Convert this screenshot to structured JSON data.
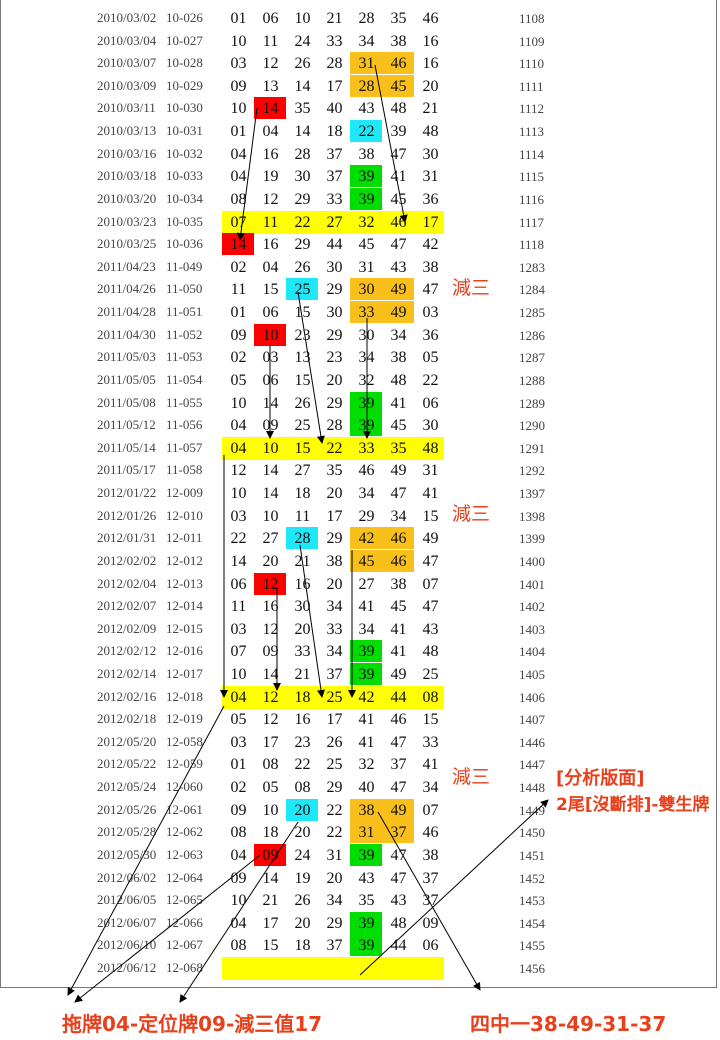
{
  "colors": {
    "yellow": "#ffff00",
    "orange": "#f9c01b",
    "red": "#ff0000",
    "cyan": "#1ee8f8",
    "green": "#00dd00",
    "annotation": "#e8401c"
  },
  "rows": [
    {
      "date": "2010/03/02",
      "issue": "10-026",
      "nums": [
        "01",
        "06",
        "10",
        "21",
        "28",
        "35",
        "46"
      ],
      "idx": "1108",
      "hl": {}
    },
    {
      "date": "2010/03/04",
      "issue": "10-027",
      "nums": [
        "10",
        "11",
        "24",
        "33",
        "34",
        "38",
        "16"
      ],
      "idx": "1109",
      "hl": {}
    },
    {
      "date": "2010/03/07",
      "issue": "10-028",
      "nums": [
        "03",
        "12",
        "26",
        "28",
        "31",
        "46",
        "16"
      ],
      "idx": "1110",
      "hl": {
        "4": "orange",
        "5": "orange"
      }
    },
    {
      "date": "2010/03/09",
      "issue": "10-029",
      "nums": [
        "09",
        "13",
        "14",
        "17",
        "28",
        "45",
        "20"
      ],
      "idx": "1111",
      "hl": {
        "4": "orange",
        "5": "orange"
      }
    },
    {
      "date": "2010/03/11",
      "issue": "10-030",
      "nums": [
        "10",
        "14",
        "35",
        "40",
        "43",
        "48",
        "21"
      ],
      "idx": "1112",
      "hl": {
        "1": "red"
      }
    },
    {
      "date": "2010/03/13",
      "issue": "10-031",
      "nums": [
        "01",
        "04",
        "14",
        "18",
        "22",
        "39",
        "48"
      ],
      "idx": "1113",
      "hl": {
        "4": "cyan"
      }
    },
    {
      "date": "2010/03/16",
      "issue": "10-032",
      "nums": [
        "04",
        "16",
        "28",
        "37",
        "38",
        "47",
        "30"
      ],
      "idx": "1114",
      "hl": {}
    },
    {
      "date": "2010/03/18",
      "issue": "10-033",
      "nums": [
        "04",
        "19",
        "30",
        "37",
        "39",
        "41",
        "31"
      ],
      "idx": "1115",
      "hl": {
        "4": "green"
      }
    },
    {
      "date": "2010/03/20",
      "issue": "10-034",
      "nums": [
        "08",
        "12",
        "29",
        "33",
        "39",
        "45",
        "36"
      ],
      "idx": "1116",
      "hl": {
        "4": "green"
      }
    },
    {
      "date": "2010/03/23",
      "issue": "10-035",
      "nums": [
        "07",
        "11",
        "22",
        "27",
        "32",
        "46",
        "17"
      ],
      "idx": "1117",
      "row_hl": "yellow",
      "hl": {}
    },
    {
      "date": "2010/03/25",
      "issue": "10-036",
      "nums": [
        "14",
        "16",
        "29",
        "44",
        "45",
        "47",
        "42"
      ],
      "idx": "1118",
      "hl": {
        "0": "red"
      }
    },
    {
      "date": "2011/04/23",
      "issue": "11-049",
      "nums": [
        "02",
        "04",
        "26",
        "30",
        "31",
        "43",
        "38"
      ],
      "idx": "1283",
      "hl": {}
    },
    {
      "date": "2011/04/26",
      "issue": "11-050",
      "nums": [
        "11",
        "15",
        "25",
        "29",
        "30",
        "49",
        "47"
      ],
      "idx": "1284",
      "hl": {
        "2": "cyan",
        "4": "orange",
        "5": "orange"
      }
    },
    {
      "date": "2011/04/28",
      "issue": "11-051",
      "nums": [
        "01",
        "06",
        "15",
        "30",
        "33",
        "49",
        "03"
      ],
      "idx": "1285",
      "hl": {
        "4": "orange",
        "5": "orange"
      }
    },
    {
      "date": "2011/04/30",
      "issue": "11-052",
      "nums": [
        "09",
        "10",
        "23",
        "29",
        "30",
        "34",
        "36"
      ],
      "idx": "1286",
      "hl": {
        "1": "red"
      }
    },
    {
      "date": "2011/05/03",
      "issue": "11-053",
      "nums": [
        "02",
        "03",
        "13",
        "23",
        "34",
        "38",
        "05"
      ],
      "idx": "1287",
      "hl": {}
    },
    {
      "date": "2011/05/05",
      "issue": "11-054",
      "nums": [
        "05",
        "06",
        "15",
        "20",
        "32",
        "48",
        "22"
      ],
      "idx": "1288",
      "hl": {}
    },
    {
      "date": "2011/05/08",
      "issue": "11-055",
      "nums": [
        "10",
        "14",
        "26",
        "29",
        "39",
        "41",
        "06"
      ],
      "idx": "1289",
      "hl": {
        "4": "green"
      }
    },
    {
      "date": "2011/05/12",
      "issue": "11-056",
      "nums": [
        "04",
        "09",
        "25",
        "28",
        "39",
        "45",
        "30"
      ],
      "idx": "1290",
      "hl": {
        "4": "green"
      }
    },
    {
      "date": "2011/05/14",
      "issue": "11-057",
      "nums": [
        "04",
        "10",
        "15",
        "22",
        "33",
        "35",
        "48"
      ],
      "idx": "1291",
      "row_hl": "yellow",
      "hl": {}
    },
    {
      "date": "2011/05/17",
      "issue": "11-058",
      "nums": [
        "12",
        "14",
        "27",
        "35",
        "46",
        "49",
        "31"
      ],
      "idx": "1292",
      "hl": {}
    },
    {
      "date": "2012/01/22",
      "issue": "12-009",
      "nums": [
        "10",
        "14",
        "18",
        "20",
        "34",
        "47",
        "41"
      ],
      "idx": "1397",
      "hl": {}
    },
    {
      "date": "2012/01/26",
      "issue": "12-010",
      "nums": [
        "03",
        "10",
        "11",
        "17",
        "29",
        "34",
        "15"
      ],
      "idx": "1398",
      "hl": {}
    },
    {
      "date": "2012/01/31",
      "issue": "12-011",
      "nums": [
        "22",
        "27",
        "28",
        "29",
        "42",
        "46",
        "49"
      ],
      "idx": "1399",
      "hl": {
        "2": "cyan",
        "4": "orange",
        "5": "orange"
      }
    },
    {
      "date": "2012/02/02",
      "issue": "12-012",
      "nums": [
        "14",
        "20",
        "21",
        "38",
        "45",
        "46",
        "47"
      ],
      "idx": "1400",
      "hl": {
        "4": "orange",
        "5": "orange"
      }
    },
    {
      "date": "2012/02/04",
      "issue": "12-013",
      "nums": [
        "06",
        "12",
        "16",
        "20",
        "27",
        "38",
        "07"
      ],
      "idx": "1401",
      "hl": {
        "1": "red"
      }
    },
    {
      "date": "2012/02/07",
      "issue": "12-014",
      "nums": [
        "11",
        "16",
        "30",
        "34",
        "41",
        "45",
        "47"
      ],
      "idx": "1402",
      "hl": {}
    },
    {
      "date": "2012/02/09",
      "issue": "12-015",
      "nums": [
        "03",
        "12",
        "20",
        "33",
        "34",
        "41",
        "43"
      ],
      "idx": "1403",
      "hl": {}
    },
    {
      "date": "2012/02/12",
      "issue": "12-016",
      "nums": [
        "07",
        "09",
        "33",
        "34",
        "39",
        "41",
        "48"
      ],
      "idx": "1404",
      "hl": {
        "4": "green"
      }
    },
    {
      "date": "2012/02/14",
      "issue": "12-017",
      "nums": [
        "10",
        "14",
        "21",
        "37",
        "39",
        "49",
        "25"
      ],
      "idx": "1405",
      "hl": {
        "4": "green"
      }
    },
    {
      "date": "2012/02/16",
      "issue": "12-018",
      "nums": [
        "04",
        "12",
        "18",
        "25",
        "42",
        "44",
        "08"
      ],
      "idx": "1406",
      "row_hl": "yellow",
      "hl": {}
    },
    {
      "date": "2012/02/18",
      "issue": "12-019",
      "nums": [
        "05",
        "12",
        "16",
        "17",
        "41",
        "46",
        "15"
      ],
      "idx": "1407",
      "hl": {}
    },
    {
      "date": "2012/05/20",
      "issue": "12-058",
      "nums": [
        "03",
        "17",
        "23",
        "26",
        "41",
        "47",
        "33"
      ],
      "idx": "1446",
      "hl": {}
    },
    {
      "date": "2012/05/22",
      "issue": "12-059",
      "nums": [
        "01",
        "08",
        "22",
        "25",
        "32",
        "37",
        "41"
      ],
      "idx": "1447",
      "hl": {}
    },
    {
      "date": "2012/05/24",
      "issue": "12-060",
      "nums": [
        "02",
        "05",
        "08",
        "29",
        "40",
        "47",
        "34"
      ],
      "idx": "1448",
      "hl": {}
    },
    {
      "date": "2012/05/26",
      "issue": "12-061",
      "nums": [
        "09",
        "10",
        "20",
        "22",
        "38",
        "49",
        "07"
      ],
      "idx": "1449",
      "hl": {
        "2": "cyan",
        "4": "orange",
        "5": "orange"
      }
    },
    {
      "date": "2012/05/28",
      "issue": "12-062",
      "nums": [
        "08",
        "18",
        "20",
        "22",
        "31",
        "37",
        "46"
      ],
      "idx": "1450",
      "hl": {
        "4": "orange",
        "5": "orange"
      }
    },
    {
      "date": "2012/05/30",
      "issue": "12-063",
      "nums": [
        "04",
        "09",
        "24",
        "31",
        "39",
        "47",
        "38"
      ],
      "idx": "1451",
      "hl": {
        "1": "red",
        "4": "green"
      }
    },
    {
      "date": "2012/06/02",
      "issue": "12-064",
      "nums": [
        "09",
        "14",
        "19",
        "20",
        "43",
        "47",
        "37"
      ],
      "idx": "1452",
      "hl": {}
    },
    {
      "date": "2012/06/05",
      "issue": "12-065",
      "nums": [
        "10",
        "21",
        "26",
        "34",
        "35",
        "43",
        "37"
      ],
      "idx": "1453",
      "hl": {}
    },
    {
      "date": "2012/06/07",
      "issue": "12-066",
      "nums": [
        "04",
        "17",
        "20",
        "29",
        "39",
        "48",
        "09"
      ],
      "idx": "1454",
      "hl": {
        "4": "green"
      }
    },
    {
      "date": "2012/06/10",
      "issue": "12-067",
      "nums": [
        "08",
        "15",
        "18",
        "37",
        "39",
        "44",
        "06"
      ],
      "idx": "1455",
      "hl": {
        "4": "green"
      }
    },
    {
      "date": "2012/06/12",
      "issue": "12-068",
      "nums": [
        "",
        "",
        "",
        "",
        "",
        "",
        ""
      ],
      "idx": "1456",
      "row_hl": "yellow",
      "hl": {}
    }
  ],
  "annotations": {
    "minus_three": "減三",
    "analysis_title": "[分析版面]",
    "analysis_sub": "2尾[沒斷排]-雙生牌",
    "bottom_left": "拖牌04-定位牌09-減三值17",
    "bottom_right": "四中一38-49-31-37"
  }
}
